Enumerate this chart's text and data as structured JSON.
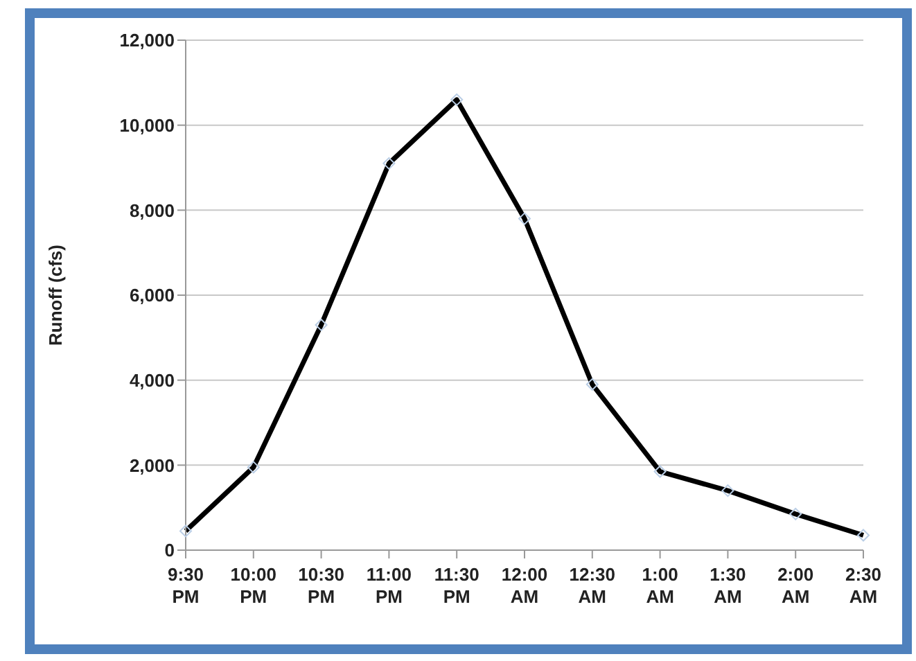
{
  "chart_data": {
    "type": "line",
    "ylabel": "Runoff (cfs)",
    "categories": [
      "9:30 PM",
      "10:00 PM",
      "10:30 PM",
      "11:00 PM",
      "11:30 PM",
      "12:00 AM",
      "12:30 AM",
      "1:00 AM",
      "1:30 AM",
      "2:00 AM",
      "2:30 AM"
    ],
    "series": [
      {
        "color": "#000000",
        "values": [
          450,
          1950,
          5300,
          9100,
          10600,
          7800,
          3900,
          1850,
          1400,
          850,
          350
        ]
      }
    ],
    "ylim": [
      0,
      12000
    ],
    "yticks": [
      {
        "value": 0,
        "label": "0"
      },
      {
        "value": 2000,
        "label": "2,000"
      },
      {
        "value": 4000,
        "label": "4,000"
      },
      {
        "value": 6000,
        "label": "6,000"
      },
      {
        "value": 8000,
        "label": "8,000"
      },
      {
        "value": 10000,
        "label": "10,000"
      },
      {
        "value": 12000,
        "label": "12,000"
      }
    ],
    "grid": "y",
    "marker": "diamond",
    "line_style": "solid",
    "legend": false
  }
}
